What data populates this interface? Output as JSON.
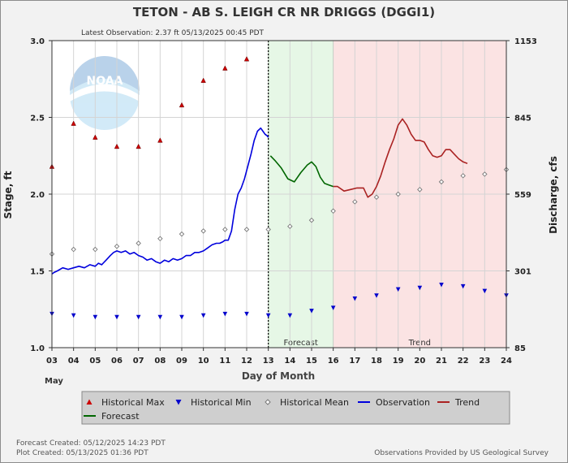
{
  "header": {
    "title": "TETON - AB S. LEIGH CR NR DRIGGS  (DGGI1)",
    "latest_observation": "Latest Observation: 2.37 ft 05/13/2025 00:45 PDT"
  },
  "footer": {
    "forecast_created": "Forecast Created: 05/12/2025 14:23 PDT",
    "plot_created": "Plot Created: 05/13/2025 01:36 PDT",
    "credit": "Observations Provided by US Geological Survey"
  },
  "legend": {
    "items": [
      {
        "label": "Historical Max",
        "symbol": "triangle-up",
        "color": "#cc0000"
      },
      {
        "label": "Historical Min",
        "symbol": "triangle-down",
        "color": "#0000cc"
      },
      {
        "label": "Historical Mean",
        "symbol": "diamond",
        "color": "#777777"
      },
      {
        "label": "Observation",
        "symbol": "line",
        "color": "#0000dd"
      },
      {
        "label": "Trend",
        "symbol": "line",
        "color": "#aa2222"
      },
      {
        "label": "Forecast",
        "symbol": "line",
        "color": "#006600"
      }
    ]
  },
  "logo_text": "NOAA",
  "chart_data": {
    "type": "line",
    "xlabel": "Day of Month",
    "x_month_label": "May",
    "ylabel_left": "Stage, ft",
    "ylabel_right": "Discharge, cfs",
    "xlim": [
      3,
      24
    ],
    "ylim": [
      1.0,
      3.0
    ],
    "x_ticks": [
      "03",
      "04",
      "05",
      "06",
      "07",
      "08",
      "09",
      "10",
      "11",
      "12",
      "13",
      "14",
      "15",
      "16",
      "17",
      "18",
      "19",
      "20",
      "21",
      "22",
      "23",
      "24"
    ],
    "y_ticks_left": [
      1.0,
      1.5,
      2.0,
      2.5,
      3.0
    ],
    "y_ticks_left_labels": [
      "1.0",
      "1.5",
      "2.0",
      "2.5",
      "3.0"
    ],
    "y_ticks_right": [
      {
        "stage": 1.0,
        "label": "85"
      },
      {
        "stage": 1.5,
        "label": "301"
      },
      {
        "stage": 2.0,
        "label": "559"
      },
      {
        "stage": 2.5,
        "label": "845"
      },
      {
        "stage": 3.0,
        "label": "1153"
      }
    ],
    "regions": [
      {
        "label": "Forecast",
        "x": [
          13,
          16
        ],
        "color": "#e6f7e6",
        "border": "#66bb66"
      },
      {
        "label": "Trend",
        "x": [
          16,
          24
        ],
        "color": "#fbe3e3",
        "border": "#dd8888"
      }
    ],
    "now_marker_x": 13,
    "grid": true,
    "series": [
      {
        "name": "Historical Max",
        "kind": "marker-triangle-up",
        "color": "#cc0000",
        "x": [
          3,
          4,
          5,
          6,
          7,
          8,
          9,
          10,
          11,
          12
        ],
        "y": [
          2.18,
          2.46,
          2.37,
          2.31,
          2.31,
          2.35,
          2.58,
          2.74,
          2.82,
          2.88
        ]
      },
      {
        "name": "Historical Min",
        "kind": "marker-triangle-down",
        "color": "#0000cc",
        "x": [
          3,
          4,
          5,
          6,
          7,
          8,
          9,
          10,
          11,
          12,
          13,
          14,
          15,
          16,
          17,
          18,
          19,
          20,
          21,
          22,
          23,
          24
        ],
        "y": [
          1.22,
          1.21,
          1.2,
          1.2,
          1.2,
          1.2,
          1.2,
          1.21,
          1.22,
          1.22,
          1.21,
          1.21,
          1.24,
          1.26,
          1.32,
          1.34,
          1.38,
          1.39,
          1.41,
          1.4,
          1.37,
          1.34
        ]
      },
      {
        "name": "Historical Mean",
        "kind": "marker-diamond",
        "color": "#777777",
        "x": [
          3,
          4,
          5,
          6,
          7,
          8,
          9,
          10,
          11,
          12,
          13,
          14,
          15,
          16,
          17,
          18,
          19,
          20,
          21,
          22,
          23,
          24
        ],
        "y": [
          1.61,
          1.64,
          1.64,
          1.66,
          1.68,
          1.71,
          1.74,
          1.76,
          1.77,
          1.77,
          1.77,
          1.79,
          1.83,
          1.89,
          1.95,
          1.98,
          2.0,
          2.03,
          2.08,
          2.12,
          2.13,
          2.16
        ]
      },
      {
        "name": "Observation",
        "kind": "line",
        "color": "#0000dd",
        "x": [
          3.0,
          3.1,
          3.25,
          3.5,
          3.75,
          4.0,
          4.25,
          4.5,
          4.75,
          5.0,
          5.15,
          5.3,
          5.5,
          5.7,
          5.85,
          6.0,
          6.2,
          6.4,
          6.6,
          6.8,
          7.0,
          7.2,
          7.4,
          7.6,
          7.8,
          8.0,
          8.2,
          8.4,
          8.6,
          8.8,
          9.0,
          9.2,
          9.4,
          9.6,
          9.8,
          10.0,
          10.2,
          10.4,
          10.6,
          10.75,
          10.9,
          11.0,
          11.15,
          11.3,
          11.45,
          11.6,
          11.75,
          11.9,
          12.05,
          12.2,
          12.35,
          12.5,
          12.65,
          12.75,
          12.85,
          12.95,
          13.0
        ],
        "y": [
          1.48,
          1.49,
          1.5,
          1.52,
          1.51,
          1.52,
          1.53,
          1.52,
          1.54,
          1.53,
          1.55,
          1.54,
          1.57,
          1.6,
          1.62,
          1.63,
          1.62,
          1.63,
          1.61,
          1.62,
          1.6,
          1.59,
          1.57,
          1.58,
          1.56,
          1.55,
          1.57,
          1.56,
          1.58,
          1.57,
          1.58,
          1.6,
          1.6,
          1.62,
          1.62,
          1.63,
          1.65,
          1.67,
          1.68,
          1.68,
          1.69,
          1.7,
          1.7,
          1.76,
          1.9,
          2.0,
          2.04,
          2.1,
          2.18,
          2.26,
          2.35,
          2.41,
          2.43,
          2.41,
          2.39,
          2.38,
          2.37
        ]
      },
      {
        "name": "Forecast",
        "kind": "line",
        "color": "#006600",
        "x": [
          13.1,
          13.3,
          13.6,
          13.9,
          14.2,
          14.5,
          14.8,
          15.0,
          15.2,
          15.4,
          15.6,
          15.8,
          16.0
        ],
        "y": [
          2.25,
          2.22,
          2.17,
          2.1,
          2.08,
          2.14,
          2.19,
          2.21,
          2.18,
          2.11,
          2.07,
          2.06,
          2.05
        ]
      },
      {
        "name": "Trend",
        "kind": "line",
        "color": "#aa2222",
        "x": [
          16.0,
          16.2,
          16.5,
          16.8,
          17.1,
          17.4,
          17.6,
          17.8,
          18.0,
          18.2,
          18.4,
          18.6,
          18.8,
          19.0,
          19.2,
          19.4,
          19.6,
          19.8,
          20.0,
          20.2,
          20.4,
          20.6,
          20.8,
          21.0,
          21.2,
          21.4,
          21.6,
          21.8,
          22.0,
          22.2
        ],
        "y": [
          2.05,
          2.05,
          2.02,
          2.03,
          2.04,
          2.04,
          1.98,
          2.0,
          2.05,
          2.12,
          2.21,
          2.29,
          2.36,
          2.45,
          2.49,
          2.45,
          2.39,
          2.35,
          2.35,
          2.34,
          2.29,
          2.25,
          2.24,
          2.25,
          2.29,
          2.29,
          2.26,
          2.23,
          2.21,
          2.2
        ]
      }
    ]
  }
}
